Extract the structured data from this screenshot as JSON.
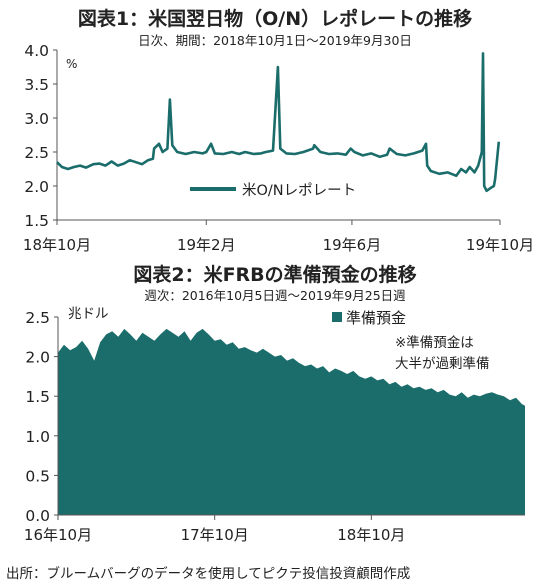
{
  "chart_data": [
    {
      "type": "line",
      "title": "図表1：米国翌日物（O/N）レポレートの推移",
      "subtitle": "日次、期間：2018年10月1日～2019年9月30日",
      "unit_label": "%",
      "ylim": [
        1.5,
        4.0
      ],
      "yticks": [
        "4.0",
        "3.5",
        "3.0",
        "2.5",
        "2.0",
        "1.5"
      ],
      "ytick_values": [
        4.0,
        3.5,
        3.0,
        2.5,
        2.0,
        1.5
      ],
      "xticks": [
        "18年10月",
        "19年2月",
        "19年6月",
        "19年10月"
      ],
      "xtick_values": [
        "2018-10-01",
        "2019-02-01",
        "2019-06-01",
        "2019-10-01"
      ],
      "grid": false,
      "legend_position": "bottom-center",
      "series": [
        {
          "name": "米O/Nレポレート",
          "color": "#1b6d6b",
          "points": [
            [
              "2018-10-01",
              2.35
            ],
            [
              "2018-10-05",
              2.28
            ],
            [
              "2018-10-10",
              2.25
            ],
            [
              "2018-10-15",
              2.28
            ],
            [
              "2018-10-20",
              2.3
            ],
            [
              "2018-10-25",
              2.27
            ],
            [
              "2018-10-31",
              2.32
            ],
            [
              "2018-11-05",
              2.33
            ],
            [
              "2018-11-10",
              2.3
            ],
            [
              "2018-11-15",
              2.36
            ],
            [
              "2018-11-20",
              2.3
            ],
            [
              "2018-11-25",
              2.33
            ],
            [
              "2018-11-30",
              2.38
            ],
            [
              "2018-12-05",
              2.35
            ],
            [
              "2018-12-10",
              2.32
            ],
            [
              "2018-12-15",
              2.38
            ],
            [
              "2018-12-19",
              2.4
            ],
            [
              "2018-12-20",
              2.55
            ],
            [
              "2018-12-24",
              2.62
            ],
            [
              "2018-12-27",
              2.5
            ],
            [
              "2018-12-31",
              2.55
            ],
            [
              "2019-01-02",
              3.27
            ],
            [
              "2019-01-04",
              2.6
            ],
            [
              "2019-01-08",
              2.5
            ],
            [
              "2019-01-15",
              2.47
            ],
            [
              "2019-01-22",
              2.5
            ],
            [
              "2019-01-29",
              2.48
            ],
            [
              "2019-02-01",
              2.5
            ],
            [
              "2019-02-05",
              2.62
            ],
            [
              "2019-02-08",
              2.48
            ],
            [
              "2019-02-15",
              2.47
            ],
            [
              "2019-02-22",
              2.5
            ],
            [
              "2019-02-28",
              2.47
            ],
            [
              "2019-03-05",
              2.5
            ],
            [
              "2019-03-12",
              2.47
            ],
            [
              "2019-03-18",
              2.48
            ],
            [
              "2019-03-22",
              2.5
            ],
            [
              "2019-03-28",
              2.52
            ],
            [
              "2019-04-01",
              3.75
            ],
            [
              "2019-04-03",
              2.55
            ],
            [
              "2019-04-08",
              2.48
            ],
            [
              "2019-04-15",
              2.47
            ],
            [
              "2019-04-22",
              2.5
            ],
            [
              "2019-04-30",
              2.55
            ],
            [
              "2019-05-01",
              2.6
            ],
            [
              "2019-05-06",
              2.5
            ],
            [
              "2019-05-13",
              2.47
            ],
            [
              "2019-05-20",
              2.48
            ],
            [
              "2019-05-27",
              2.46
            ],
            [
              "2019-05-31",
              2.55
            ],
            [
              "2019-06-03",
              2.5
            ],
            [
              "2019-06-10",
              2.45
            ],
            [
              "2019-06-17",
              2.48
            ],
            [
              "2019-06-24",
              2.43
            ],
            [
              "2019-06-30",
              2.46
            ],
            [
              "2019-07-02",
              2.55
            ],
            [
              "2019-07-08",
              2.47
            ],
            [
              "2019-07-15",
              2.45
            ],
            [
              "2019-07-22",
              2.48
            ],
            [
              "2019-07-29",
              2.52
            ],
            [
              "2019-08-01",
              2.62
            ],
            [
              "2019-08-02",
              2.3
            ],
            [
              "2019-08-05",
              2.22
            ],
            [
              "2019-08-12",
              2.18
            ],
            [
              "2019-08-19",
              2.2
            ],
            [
              "2019-08-26",
              2.15
            ],
            [
              "2019-08-30",
              2.25
            ],
            [
              "2019-09-03",
              2.2
            ],
            [
              "2019-09-06",
              2.28
            ],
            [
              "2019-09-10",
              2.2
            ],
            [
              "2019-09-13",
              2.3
            ],
            [
              "2019-09-16",
              2.5
            ],
            [
              "2019-09-17",
              3.95
            ],
            [
              "2019-09-18",
              2.0
            ],
            [
              "2019-09-20",
              1.93
            ],
            [
              "2019-09-24",
              1.98
            ],
            [
              "2019-09-26",
              2.0
            ],
            [
              "2019-09-27",
              2.1
            ],
            [
              "2019-09-30",
              2.65
            ]
          ]
        }
      ]
    },
    {
      "type": "area",
      "title": "図表2：米FRBの準備預金の推移",
      "subtitle": "週次：2016年10月5日週～2019年9月25日週",
      "unit_label": "兆ドル",
      "ylim": [
        0.0,
        2.5
      ],
      "yticks": [
        "2.5",
        "2.0",
        "1.5",
        "1.0",
        "0.5",
        "0.0"
      ],
      "ytick_values": [
        2.5,
        2.0,
        1.5,
        1.0,
        0.5,
        0.0
      ],
      "xticks": [
        "16年10月",
        "17年10月",
        "18年10月"
      ],
      "xtick_values": [
        "2016-10-05",
        "2017-10-04",
        "2018-10-03"
      ],
      "grid": false,
      "legend_position": "top-right",
      "annotation": [
        "※準備預金は",
        "大半が過剰準備"
      ],
      "series": [
        {
          "name": "準備預金",
          "color": "#1b6d6b",
          "points": [
            [
              "2016-10-05",
              2.05
            ],
            [
              "2016-10-19",
              2.15
            ],
            [
              "2016-11-02",
              2.08
            ],
            [
              "2016-11-16",
              2.12
            ],
            [
              "2016-11-30",
              2.2
            ],
            [
              "2016-12-14",
              2.1
            ],
            [
              "2016-12-28",
              1.95
            ],
            [
              "2017-01-11",
              2.18
            ],
            [
              "2017-01-25",
              2.28
            ],
            [
              "2017-02-08",
              2.32
            ],
            [
              "2017-02-22",
              2.25
            ],
            [
              "2017-03-08",
              2.35
            ],
            [
              "2017-03-22",
              2.28
            ],
            [
              "2017-04-05",
              2.2
            ],
            [
              "2017-04-19",
              2.3
            ],
            [
              "2017-05-03",
              2.25
            ],
            [
              "2017-05-17",
              2.2
            ],
            [
              "2017-05-31",
              2.28
            ],
            [
              "2017-06-14",
              2.35
            ],
            [
              "2017-06-28",
              2.3
            ],
            [
              "2017-07-12",
              2.25
            ],
            [
              "2017-07-26",
              2.32
            ],
            [
              "2017-08-09",
              2.2
            ],
            [
              "2017-08-23",
              2.3
            ],
            [
              "2017-09-06",
              2.35
            ],
            [
              "2017-09-20",
              2.28
            ],
            [
              "2017-10-04",
              2.2
            ],
            [
              "2017-10-18",
              2.22
            ],
            [
              "2017-11-01",
              2.15
            ],
            [
              "2017-11-15",
              2.18
            ],
            [
              "2017-11-29",
              2.1
            ],
            [
              "2017-12-13",
              2.12
            ],
            [
              "2017-12-27",
              2.08
            ],
            [
              "2018-01-10",
              2.05
            ],
            [
              "2018-01-24",
              2.1
            ],
            [
              "2018-02-07",
              2.05
            ],
            [
              "2018-02-21",
              2.0
            ],
            [
              "2018-03-07",
              2.02
            ],
            [
              "2018-03-21",
              1.95
            ],
            [
              "2018-04-04",
              1.98
            ],
            [
              "2018-04-18",
              1.92
            ],
            [
              "2018-05-02",
              1.88
            ],
            [
              "2018-05-16",
              1.9
            ],
            [
              "2018-05-30",
              1.85
            ],
            [
              "2018-06-13",
              1.88
            ],
            [
              "2018-06-27",
              1.8
            ],
            [
              "2018-07-11",
              1.85
            ],
            [
              "2018-07-25",
              1.82
            ],
            [
              "2018-08-08",
              1.78
            ],
            [
              "2018-08-22",
              1.82
            ],
            [
              "2018-09-05",
              1.75
            ],
            [
              "2018-09-19",
              1.72
            ],
            [
              "2018-10-03",
              1.75
            ],
            [
              "2018-10-17",
              1.7
            ],
            [
              "2018-10-31",
              1.72
            ],
            [
              "2018-11-14",
              1.65
            ],
            [
              "2018-11-28",
              1.68
            ],
            [
              "2018-12-12",
              1.62
            ],
            [
              "2018-12-26",
              1.65
            ],
            [
              "2019-01-09",
              1.6
            ],
            [
              "2019-01-23",
              1.62
            ],
            [
              "2019-02-06",
              1.58
            ],
            [
              "2019-02-20",
              1.6
            ],
            [
              "2019-03-06",
              1.55
            ],
            [
              "2019-03-20",
              1.58
            ],
            [
              "2019-04-03",
              1.52
            ],
            [
              "2019-04-17",
              1.5
            ],
            [
              "2019-05-01",
              1.55
            ],
            [
              "2019-05-15",
              1.48
            ],
            [
              "2019-05-29",
              1.52
            ],
            [
              "2019-06-12",
              1.5
            ],
            [
              "2019-06-26",
              1.53
            ],
            [
              "2019-07-10",
              1.55
            ],
            [
              "2019-07-24",
              1.52
            ],
            [
              "2019-08-07",
              1.5
            ],
            [
              "2019-08-21",
              1.45
            ],
            [
              "2019-09-04",
              1.48
            ],
            [
              "2019-09-18",
              1.4
            ],
            [
              "2019-09-25",
              1.38
            ]
          ]
        }
      ]
    }
  ],
  "source_note": "出所：ブルームバーグのデータを使用してピクテ投信投資顧問作成"
}
